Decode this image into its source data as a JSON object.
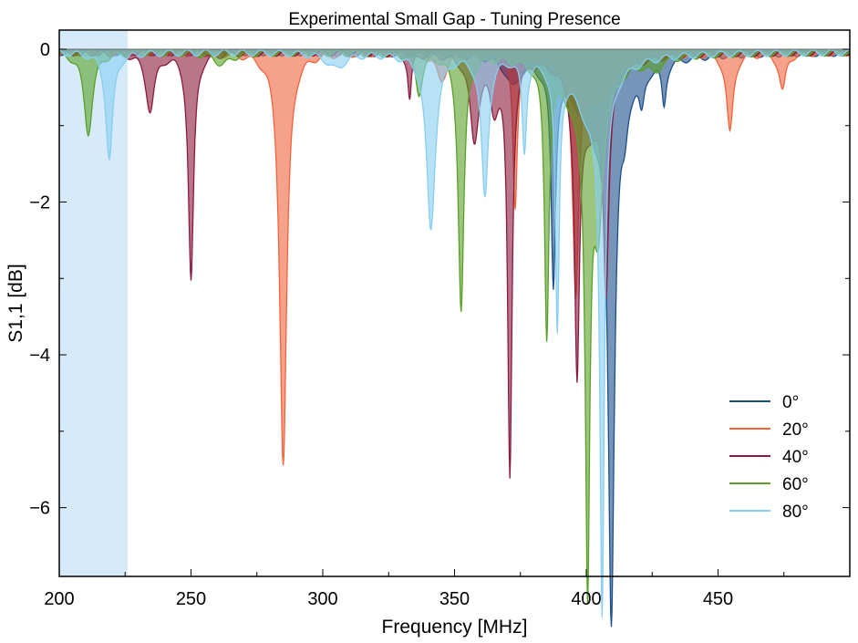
{
  "chart_data": {
    "type": "area",
    "title": "Experimental Small Gap - Tuning Presence",
    "xlabel": "Frequency [MHz]",
    "ylabel": "S1,1 [dB]",
    "xlim": [
      200,
      500
    ],
    "ylim": [
      -6.9,
      0.25
    ],
    "xticks": [
      200,
      250,
      300,
      350,
      400,
      450
    ],
    "yticks": [
      0,
      -2,
      -4,
      -6
    ],
    "shaded_band": {
      "x0": 200,
      "x1": 226,
      "color": "#d6eafa"
    },
    "legend_position": "bottom-right",
    "series": [
      {
        "name": "0°",
        "color": "#1a4f8b",
        "fill": "#1a4f8b",
        "dips": [
          {
            "f": 409.5,
            "depth": 6.8,
            "width": 1.4
          },
          {
            "f": 387.5,
            "depth": 2.8,
            "width": 1.0
          },
          {
            "f": 414.5,
            "depth": 0.5,
            "width": 1.5
          },
          {
            "f": 421.0,
            "depth": 0.45,
            "width": 1.2
          },
          {
            "f": 429.5,
            "depth": 0.55,
            "width": 1.0
          },
          {
            "f": 403.0,
            "depth": 0.9,
            "width": 10.0
          },
          {
            "f": 372.0,
            "depth": 0.35,
            "width": 3.0
          }
        ]
      },
      {
        "name": "20°",
        "color": "#f0643c",
        "fill": "#f0643c",
        "dips": [
          {
            "f": 285.0,
            "depth": 5.4,
            "width": 1.6
          },
          {
            "f": 373.0,
            "depth": 2.0,
            "width": 1.0
          },
          {
            "f": 396.0,
            "depth": 3.0,
            "width": 1.4
          },
          {
            "f": 454.5,
            "depth": 1.05,
            "width": 1.5
          },
          {
            "f": 474.5,
            "depth": 0.5,
            "width": 1.5
          },
          {
            "f": 345.0,
            "depth": 0.35,
            "width": 2.5
          },
          {
            "f": 405.0,
            "depth": 0.6,
            "width": 6.0
          }
        ]
      },
      {
        "name": "40°",
        "color": "#8b1a3c",
        "fill": "#8b1a3c",
        "dips": [
          {
            "f": 234.5,
            "depth": 0.75,
            "width": 2.0
          },
          {
            "f": 250.0,
            "depth": 3.0,
            "width": 1.2
          },
          {
            "f": 333.0,
            "depth": 0.6,
            "width": 0.8
          },
          {
            "f": 357.5,
            "depth": 1.1,
            "width": 2.0
          },
          {
            "f": 371.0,
            "depth": 5.45,
            "width": 1.0
          },
          {
            "f": 396.5,
            "depth": 3.75,
            "width": 1.1
          },
          {
            "f": 407.5,
            "depth": 2.6,
            "width": 1.2
          },
          {
            "f": 402.0,
            "depth": 0.9,
            "width": 7.0
          },
          {
            "f": 365.0,
            "depth": 0.6,
            "width": 2.0
          }
        ]
      },
      {
        "name": "60°",
        "color": "#5aa028",
        "fill": "#5aa028",
        "dips": [
          {
            "f": 211.0,
            "depth": 1.05,
            "width": 2.0
          },
          {
            "f": 336.5,
            "depth": 0.5,
            "width": 1.5
          },
          {
            "f": 352.5,
            "depth": 3.35,
            "width": 1.3
          },
          {
            "f": 385.0,
            "depth": 3.5,
            "width": 1.0
          },
          {
            "f": 400.5,
            "depth": 6.05,
            "width": 1.0
          },
          {
            "f": 404.5,
            "depth": 1.6,
            "width": 2.0
          },
          {
            "f": 400.0,
            "depth": 0.8,
            "width": 9.0
          },
          {
            "f": 426.0,
            "depth": 0.15,
            "width": 3.0
          },
          {
            "f": 262.0,
            "depth": 0.15,
            "width": 4.0
          }
        ]
      },
      {
        "name": "80°",
        "color": "#87cef0",
        "fill": "#87cef0",
        "dips": [
          {
            "f": 219.0,
            "depth": 1.4,
            "width": 1.6
          },
          {
            "f": 341.0,
            "depth": 2.3,
            "width": 2.0
          },
          {
            "f": 361.5,
            "depth": 1.85,
            "width": 1.6
          },
          {
            "f": 376.5,
            "depth": 1.2,
            "width": 1.0
          },
          {
            "f": 389.0,
            "depth": 3.45,
            "width": 0.9
          },
          {
            "f": 406.0,
            "depth": 6.7,
            "width": 1.0
          },
          {
            "f": 402.0,
            "depth": 0.8,
            "width": 8.0
          },
          {
            "f": 305.0,
            "depth": 0.2,
            "width": 4.0
          }
        ]
      }
    ]
  }
}
